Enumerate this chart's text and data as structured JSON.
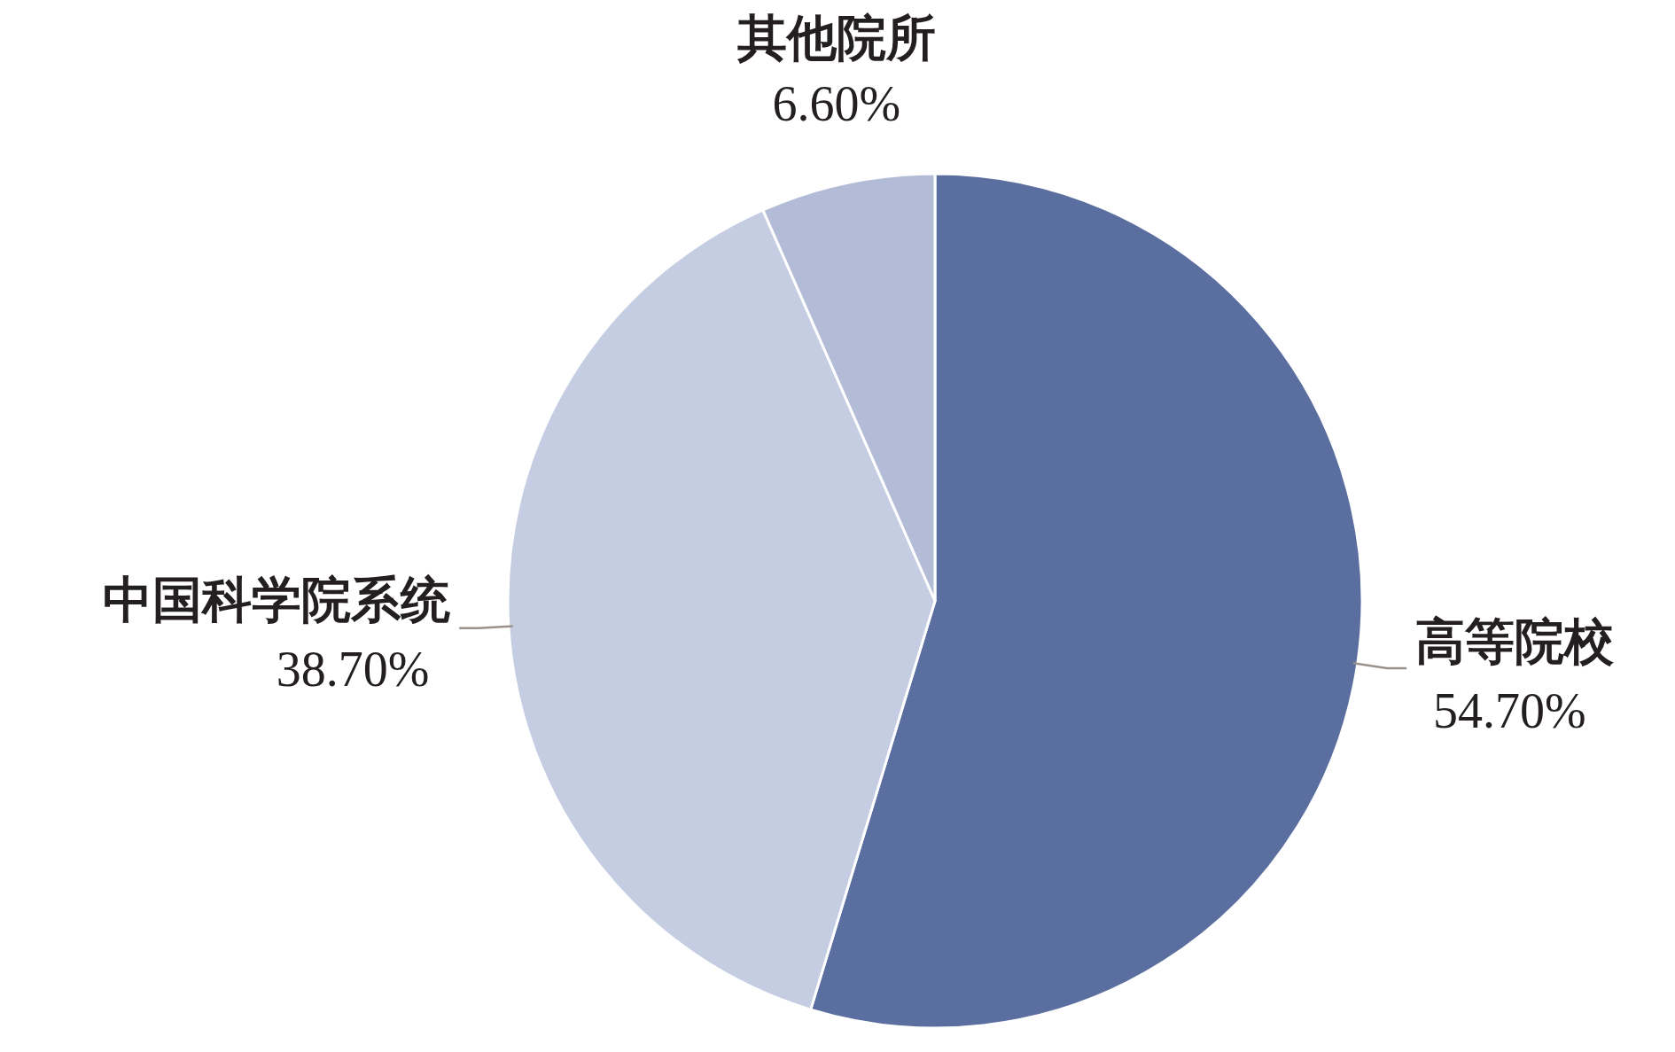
{
  "chart_data": {
    "type": "pie",
    "categories": [
      "高等院校",
      "中国科学院系统",
      "其他院所"
    ],
    "values": [
      54.7,
      38.7,
      6.6
    ],
    "value_labels": [
      "54.70%",
      "38.70%",
      "6.60%"
    ],
    "colors": [
      "#5a6e9f",
      "#c5cde2",
      "#b2bcd6"
    ]
  }
}
